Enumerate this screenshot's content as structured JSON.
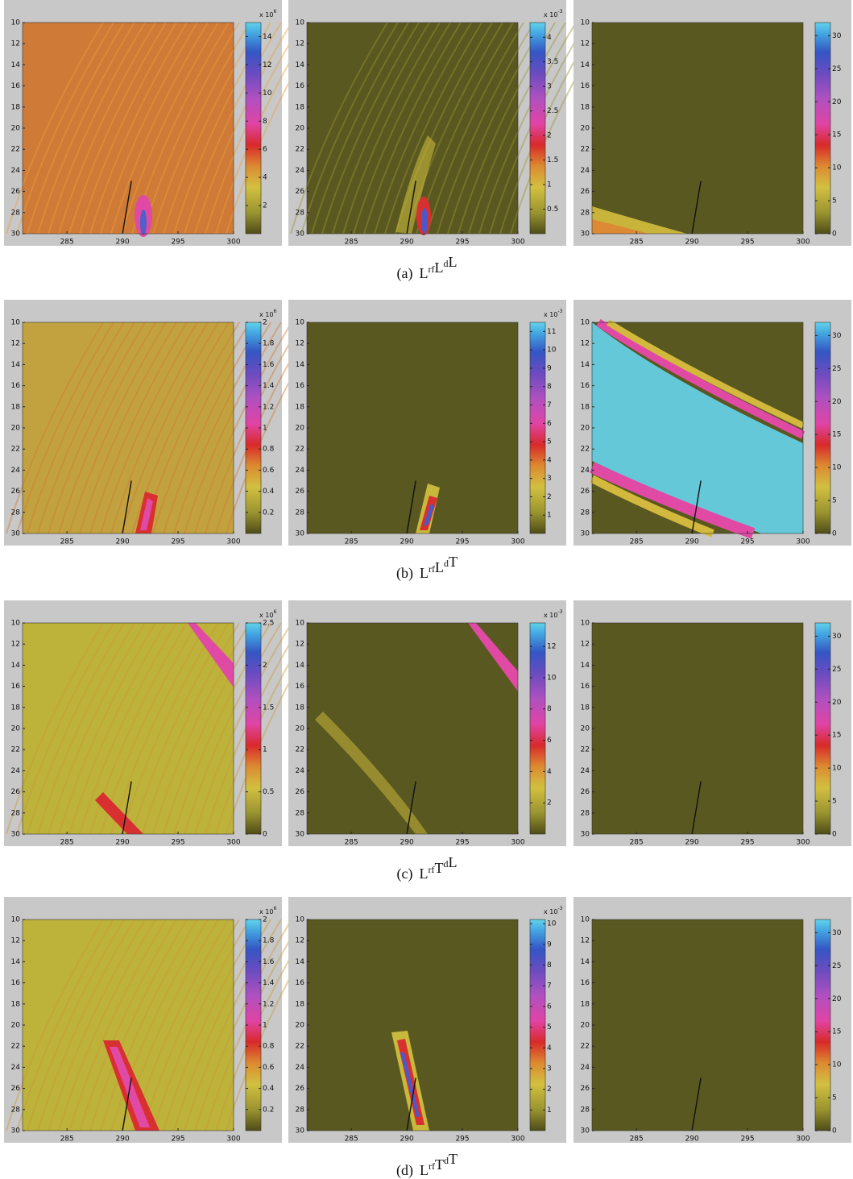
{
  "axes": {
    "xlim": [
      281,
      300
    ],
    "ylim": [
      10,
      30
    ],
    "xticks": [
      285,
      290,
      295,
      300
    ],
    "yticks": [
      10,
      12,
      14,
      16,
      18,
      20,
      22,
      24,
      26,
      28,
      30
    ],
    "marker": {
      "x": [
        290,
        290.8
      ],
      "y": [
        30,
        25
      ]
    }
  },
  "rows": [
    {
      "caption": {
        "tag": "(a)",
        "parts": [
          {
            "base": "L",
            "sup": "rf"
          },
          {
            "base": "L",
            "sup": "d"
          },
          {
            "base": "L"
          }
        ]
      },
      "panels": [
        {
          "colorbar": {
            "clim": [
              0,
              15
            ],
            "ticks": [
              2,
              4,
              6,
              8,
              10,
              12,
              14
            ],
            "scale": {
              "base": "x 10",
              "exp": "6"
            }
          }
        },
        {
          "colorbar": {
            "clim": [
              0,
              4.3
            ],
            "ticks": [
              0.5,
              1,
              1.5,
              2,
              2.5,
              3,
              3.5,
              4
            ],
            "scale": {
              "base": "x 10",
              "exp": "-3"
            }
          }
        },
        {
          "colorbar": {
            "clim": [
              0,
              32
            ],
            "ticks": [
              0,
              5,
              10,
              15,
              20,
              25,
              30
            ]
          }
        }
      ]
    },
    {
      "caption": {
        "tag": "(b)",
        "parts": [
          {
            "base": "L",
            "sup": "rf"
          },
          {
            "base": "L",
            "sup": "d"
          },
          {
            "base": "T"
          }
        ]
      },
      "panels": [
        {
          "colorbar": {
            "clim": [
              0,
              2
            ],
            "ticks": [
              0.2,
              0.4,
              0.6,
              0.8,
              1,
              1.2,
              1.4,
              1.6,
              1.8,
              2
            ],
            "scale": {
              "base": "x 10",
              "exp": "6"
            }
          }
        },
        {
          "colorbar": {
            "clim": [
              0,
              11.5
            ],
            "ticks": [
              1,
              2,
              3,
              4,
              5,
              6,
              7,
              8,
              9,
              10,
              11
            ],
            "scale": {
              "base": "x 10",
              "exp": "-3"
            }
          }
        },
        {
          "colorbar": {
            "clim": [
              0,
              32
            ],
            "ticks": [
              0,
              5,
              10,
              15,
              20,
              25,
              30
            ]
          }
        }
      ]
    },
    {
      "caption": {
        "tag": "(c)",
        "parts": [
          {
            "base": "L",
            "sup": "rf"
          },
          {
            "base": "T",
            "sup": "d"
          },
          {
            "base": "L"
          }
        ]
      },
      "panels": [
        {
          "colorbar": {
            "clim": [
              0,
              2.5
            ],
            "ticks": [
              0,
              0.5,
              1,
              1.5,
              2,
              2.5
            ],
            "scale": {
              "base": "x 10",
              "exp": "6"
            }
          }
        },
        {
          "colorbar": {
            "clim": [
              0,
              13.5
            ],
            "ticks": [
              2,
              4,
              6,
              8,
              10,
              12
            ],
            "scale": {
              "base": "x 10",
              "exp": "-3"
            }
          }
        },
        {
          "colorbar": {
            "clim": [
              0,
              32
            ],
            "ticks": [
              0,
              5,
              10,
              15,
              20,
              25,
              30
            ]
          }
        }
      ]
    },
    {
      "caption": {
        "tag": "(d)",
        "parts": [
          {
            "base": "L",
            "sup": "rf"
          },
          {
            "base": "T",
            "sup": "d"
          },
          {
            "base": "T"
          }
        ]
      },
      "panels": [
        {
          "colorbar": {
            "clim": [
              0,
              2
            ],
            "ticks": [
              0.2,
              0.4,
              0.6,
              0.8,
              1,
              1.2,
              1.4,
              1.6,
              1.8,
              2
            ],
            "scale": {
              "base": "x 10",
              "exp": "6"
            }
          }
        },
        {
          "colorbar": {
            "clim": [
              0,
              10.2
            ],
            "ticks": [
              1,
              2,
              3,
              4,
              5,
              6,
              7,
              8,
              9,
              10
            ],
            "scale": {
              "base": "x 10",
              "exp": "-3"
            }
          }
        },
        {
          "colorbar": {
            "clim": [
              0,
              32
            ],
            "ticks": [
              0,
              5,
              10,
              15,
              20,
              25,
              30
            ]
          }
        }
      ]
    }
  ]
}
